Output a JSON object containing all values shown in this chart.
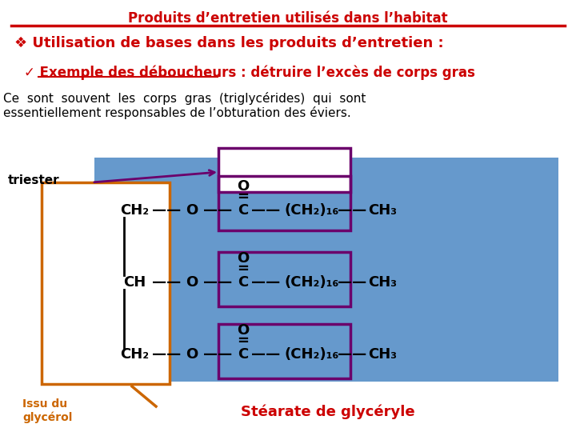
{
  "title": "Produits d’entretien utilisés dans l’habitat",
  "title_color": "#cc0000",
  "title_fontsize": 12,
  "bullet_line": "❖ Utilisation de bases dans les produits d’entretien :",
  "bullet_color": "#cc0000",
  "bullet_fontsize": 13,
  "check_color": "#cc0000",
  "check_fontsize": 12,
  "body_color": "#000000",
  "body_fontsize": 11,
  "bg_blue": "#6699cc",
  "orange_color": "#cc6600",
  "purple_color": "#6b006b",
  "triester_label": "triester",
  "issu_label": "Issu du\nglycérol",
  "stearate_label": "Stéarate de glycéryle",
  "stearate_color": "#cc0000",
  "fig_w": 7.2,
  "fig_h": 5.4,
  "dpi": 100
}
